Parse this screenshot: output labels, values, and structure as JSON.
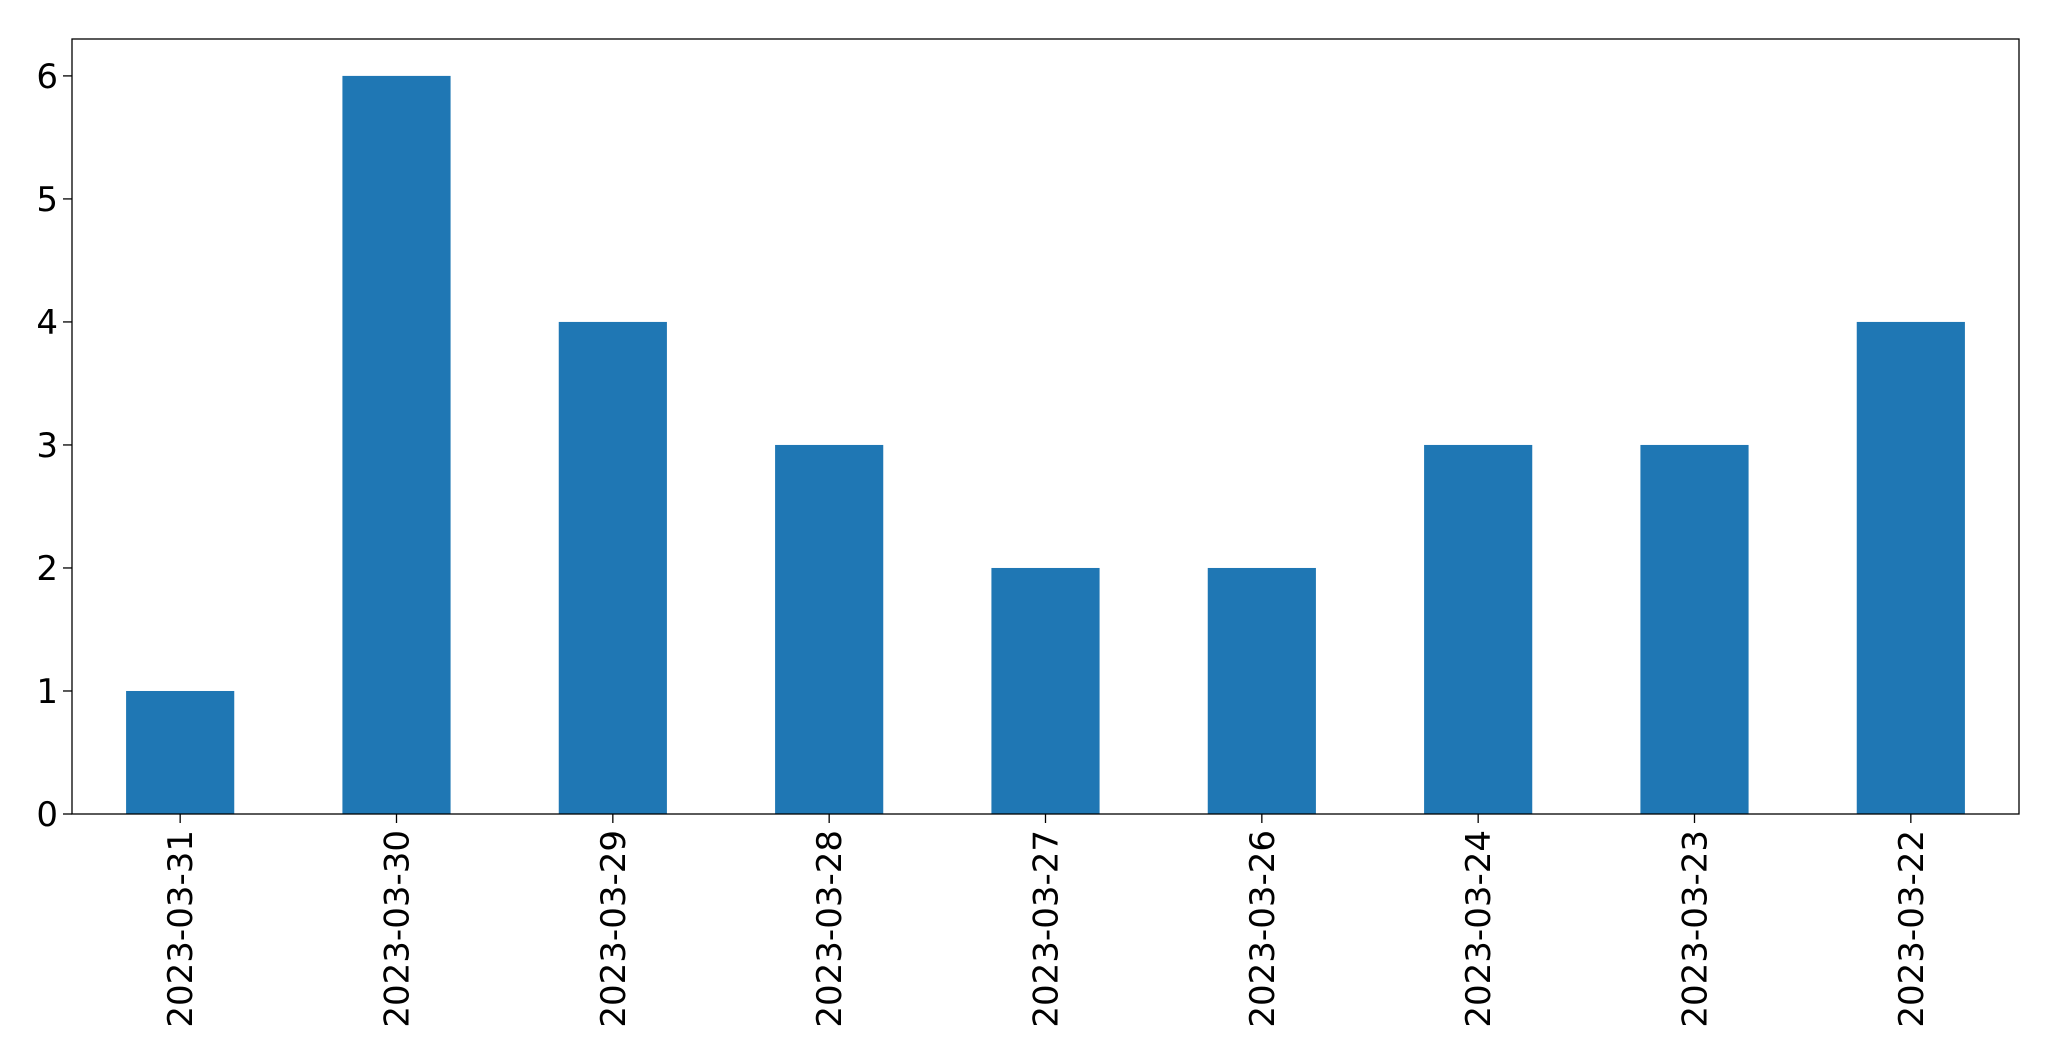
{
  "chart_data": {
    "type": "bar",
    "categories": [
      "2023-03-31",
      "2023-03-30",
      "2023-03-29",
      "2023-03-28",
      "2023-03-27",
      "2023-03-26",
      "2023-03-24",
      "2023-03-23",
      "2023-03-22"
    ],
    "values": [
      1,
      6,
      4,
      3,
      2,
      2,
      3,
      3,
      4
    ],
    "color": "#1f77b4",
    "ylim": [
      0,
      6.3
    ],
    "yticks": [
      0,
      1,
      2,
      3,
      4,
      5,
      6
    ],
    "grid": false
  }
}
